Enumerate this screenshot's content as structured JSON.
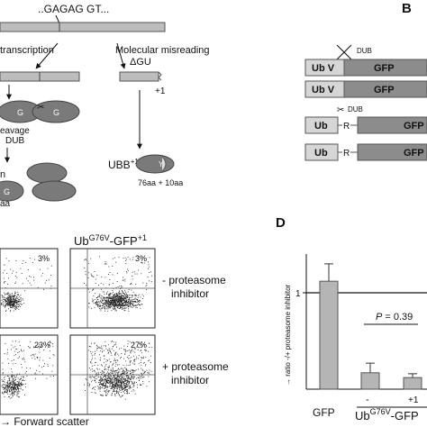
{
  "figure": {
    "top_sequence": "..GAGAG GT...",
    "transcription_label": "transcription",
    "misreading_label_1": "Molecular misreading",
    "misreading_label_2": "ΔGU",
    "frameshift_label": "+1",
    "ubiquitin_letter": "G",
    "cleavage_label_1": "eavage",
    "cleavage_label_2": "DUB",
    "partial_left_a": "n",
    "partial_left_b": "aa",
    "ubb_label": "UBB",
    "ubb_superscript": "+1",
    "ubb_aa_label": "76aa + 10aa",
    "ubb_protein_letter": "Y"
  },
  "panel_b": {
    "letter": "B",
    "rows": [
      {
        "left": "Ub V",
        "right": "GFP",
        "dub": "DUB",
        "blocked": true
      },
      {
        "left": "Ub V",
        "right": "GFP",
        "dub": "",
        "blocked": false
      },
      {
        "left": "Ub",
        "linker": "R",
        "right": "GFP",
        "dub": "DUB",
        "blocked": false
      },
      {
        "left": "Ub",
        "linker": "R",
        "right": "GFP",
        "dub": "",
        "blocked": false
      }
    ]
  },
  "panel_c": {
    "title_base": "Ub",
    "title_sup1": "G76V",
    "title_mid": "-GFP",
    "title_sup2": "+1",
    "left_pct_top": "3%",
    "right_pct_top": "3%",
    "left_pct_bottom": "23%",
    "right_pct_bottom": "27%",
    "minus_label_1": "- proteasome",
    "minus_label_2": "inhibitor",
    "plus_label_1": "+ proteasome",
    "plus_label_2": "inhibitor",
    "xlabel": "→ Forward scatter"
  },
  "panel_d": {
    "letter": "D",
    "ylabel": "→ ratio -/+ proteasome inhibitor",
    "tick_label": "1",
    "p_label_italic": "P",
    "p_label_rest": " = 0.39",
    "x_gfp": "GFP",
    "x_ub_base": "Ub",
    "x_ub_sup": "G76V",
    "x_ub_rest": "-GFP",
    "sub_minus": "-",
    "sub_plus": "+1",
    "chart_data": {
      "type": "bar",
      "categories": [
        "GFP",
        "-",
        "+1"
      ],
      "values": [
        1.12,
        0.17,
        0.12
      ],
      "errors": [
        0.18,
        0.1,
        0.04
      ],
      "ylim": [
        0,
        1.4
      ],
      "reference_line": 1,
      "ylabel": "→ ratio -/+ proteasome inhibitor"
    }
  }
}
